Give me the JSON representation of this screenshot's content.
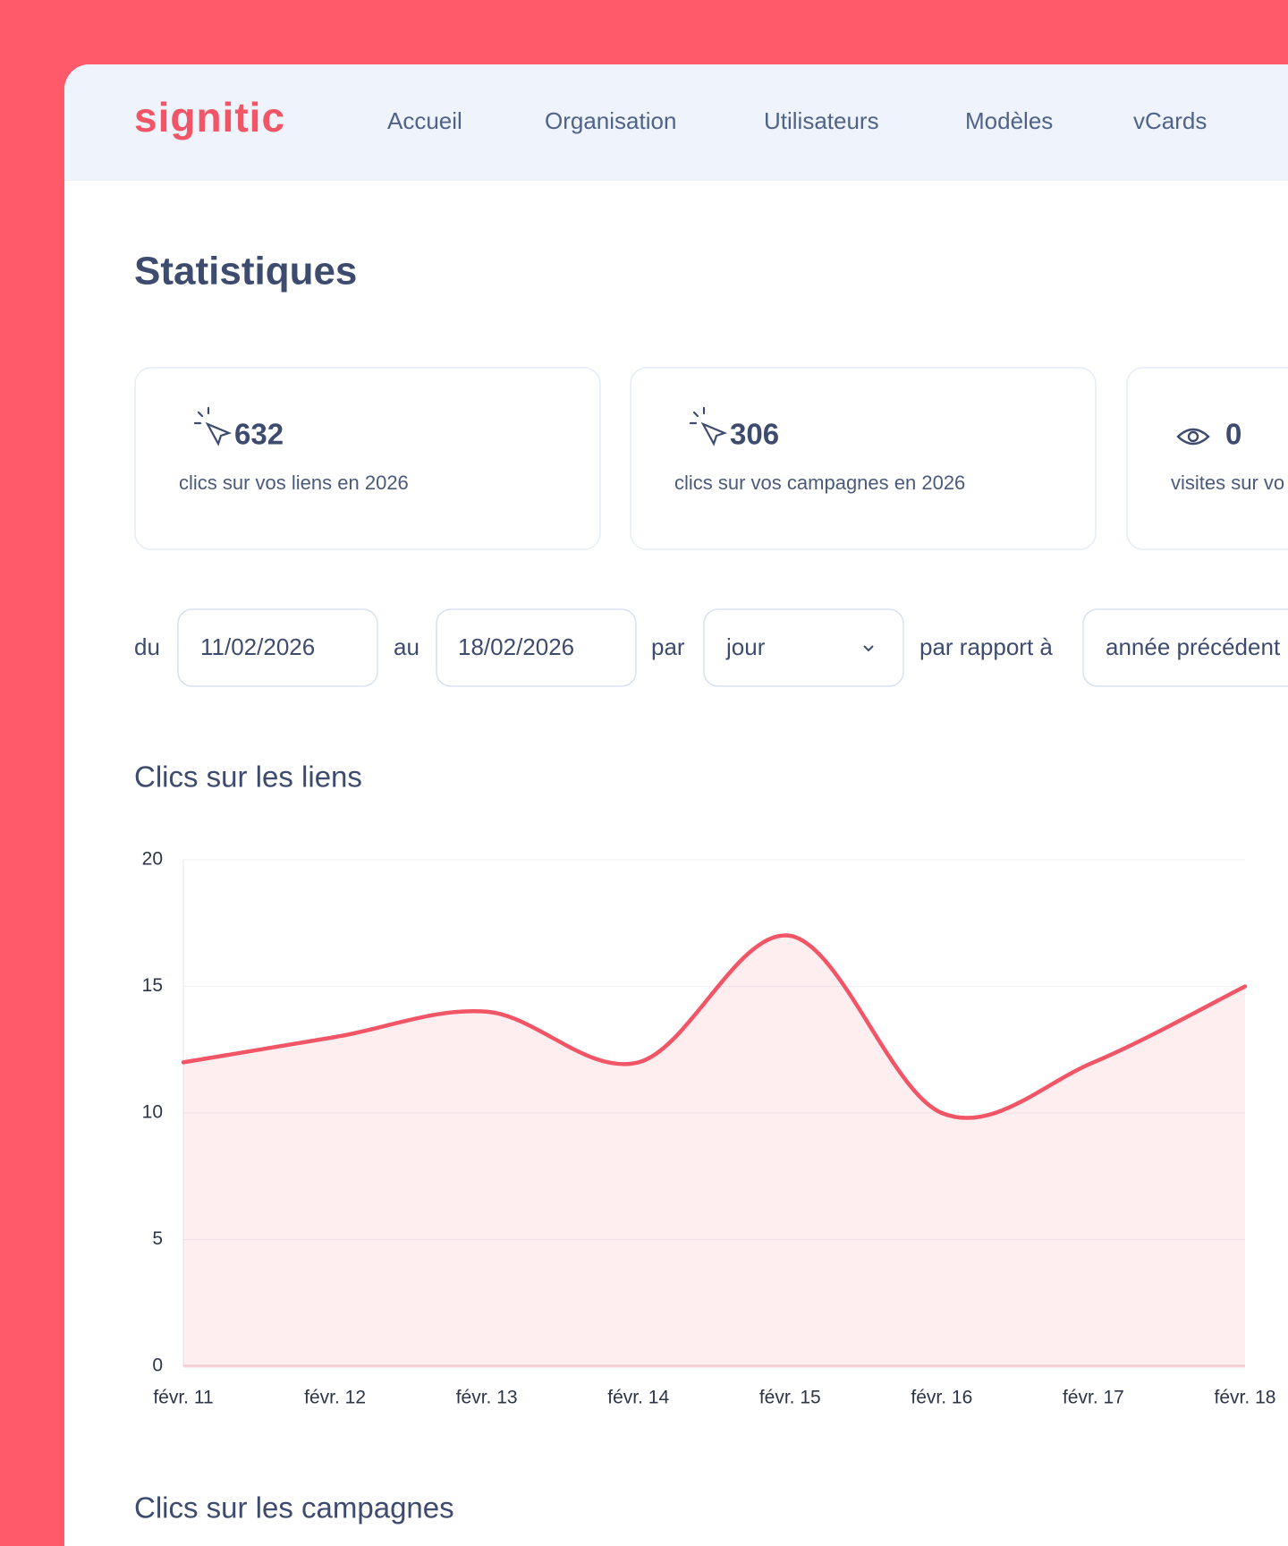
{
  "nav": {
    "logo": "signitic",
    "items": [
      "Accueil",
      "Organisation",
      "Utilisateurs",
      "Modèles",
      "vCards"
    ]
  },
  "page": {
    "title": "Statistiques"
  },
  "cards": [
    {
      "value": 632,
      "label": "clics sur vos liens en 2026"
    },
    {
      "value": 306,
      "label": "clics sur vos campagnes en 2026"
    },
    {
      "value": 0,
      "label": "visites sur vo"
    }
  ],
  "filters": {
    "from_label": "du",
    "from": "11/02/2026",
    "to_label": "au",
    "to": "18/02/2026",
    "by_label": "par",
    "by": "jour",
    "compare_label": "par rapport à",
    "compare": "année précédent"
  },
  "chart_data": {
    "type": "area",
    "title": "Clics sur les liens",
    "categories": [
      "févr. 11",
      "févr. 12",
      "févr. 13",
      "févr. 14",
      "févr. 15",
      "févr. 16",
      "févr. 17",
      "févr. 18"
    ],
    "values": [
      12,
      13,
      14,
      12,
      17,
      10,
      12,
      15
    ],
    "color": "#f25566",
    "ylim": [
      0,
      20
    ],
    "yticks": [
      0,
      5,
      10,
      15,
      20
    ],
    "grid": true
  },
  "next_section": {
    "title": "Clics sur les campagnes"
  }
}
